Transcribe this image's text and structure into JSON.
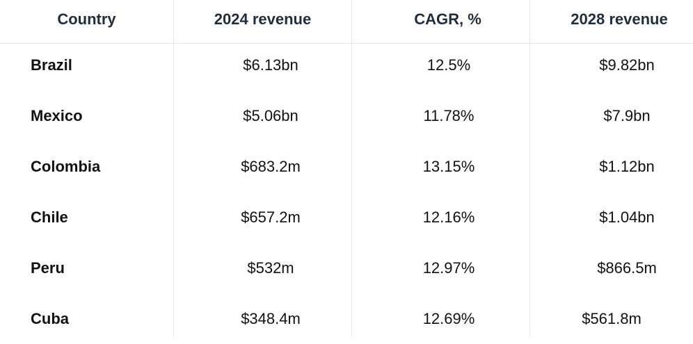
{
  "table": {
    "headers": [
      "Country",
      "2024 revenue",
      "CAGR, %",
      "2028 revenue"
    ],
    "rows": [
      {
        "country": "Brazil",
        "revenue_2024": "$6.13bn",
        "cagr": "12.5%",
        "revenue_2028": "$9.82bn"
      },
      {
        "country": "Mexico",
        "revenue_2024": "$5.06bn",
        "cagr": "11.78%",
        "revenue_2028": "$7.9bn"
      },
      {
        "country": "Colombia",
        "revenue_2024": "$683.2m",
        "cagr": "13.15%",
        "revenue_2028": "$1.12bn"
      },
      {
        "country": "Chile",
        "revenue_2024": "$657.2m",
        "cagr": "12.16%",
        "revenue_2028": "$1.04bn"
      },
      {
        "country": "Peru",
        "revenue_2024": "$532m",
        "cagr": "12.97%",
        "revenue_2028": "$866.5m"
      },
      {
        "country": "Cuba",
        "revenue_2024": "$348.4m",
        "cagr": "12.69%",
        "revenue_2028": "$561.8m"
      }
    ]
  }
}
